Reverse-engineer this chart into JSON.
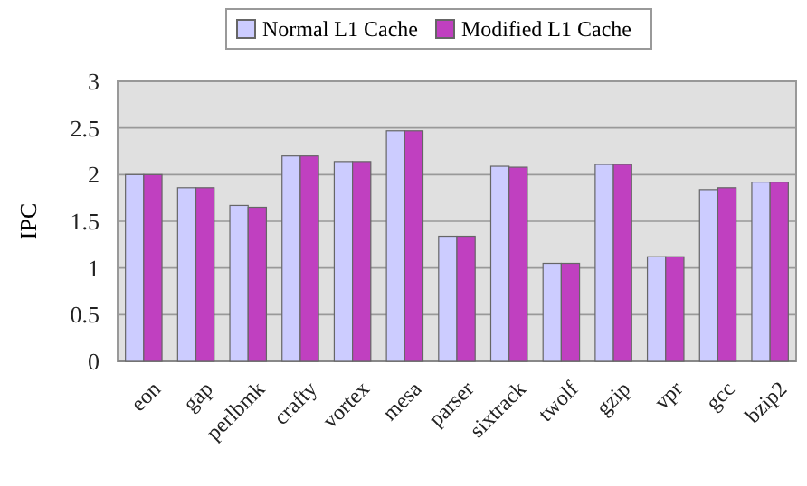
{
  "chart_data": {
    "type": "bar",
    "ylabel": "IPC",
    "categories": [
      "eon",
      "gap",
      "perlbmk",
      "crafty",
      "vortex",
      "mesa",
      "parser",
      "sixtrack",
      "twolf",
      "gzip",
      "vpr",
      "gcc",
      "bzip2"
    ],
    "series": [
      {
        "name": "Normal L1 Cache",
        "color": "#ccccff",
        "values": [
          2.0,
          1.86,
          1.67,
          2.2,
          2.14,
          2.47,
          1.34,
          2.09,
          1.05,
          2.11,
          1.12,
          1.84,
          1.92
        ]
      },
      {
        "name": "Modified L1 Cache",
        "color": "#c040c0",
        "values": [
          2.0,
          1.86,
          1.65,
          2.2,
          2.14,
          2.47,
          1.34,
          2.08,
          1.05,
          2.11,
          1.12,
          1.86,
          1.92
        ]
      }
    ],
    "ylim": [
      0,
      3
    ],
    "yticks": [
      0,
      0.5,
      1,
      1.5,
      2,
      2.5,
      3
    ],
    "grid": "y",
    "legend": "top"
  }
}
